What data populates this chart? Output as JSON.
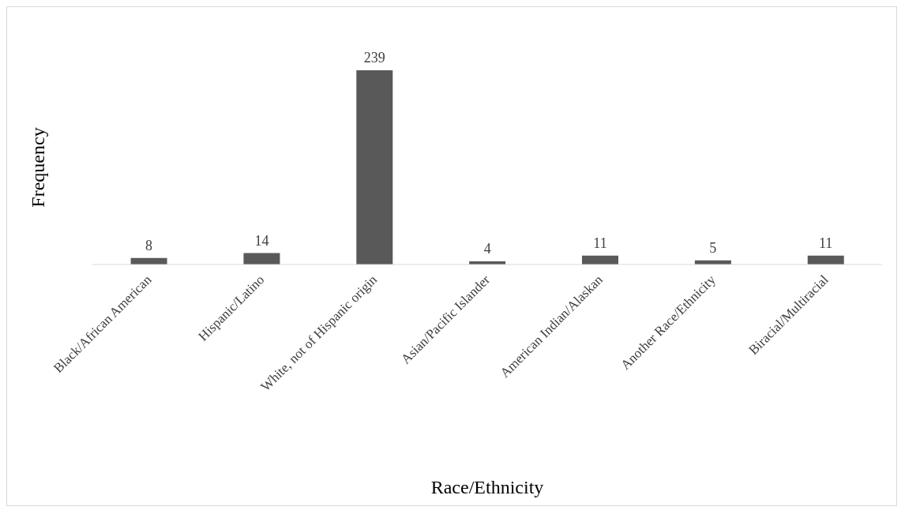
{
  "chart_data": {
    "type": "bar",
    "xlabel": "Race/Ethnicity",
    "ylabel": "Frequency",
    "categories": [
      "Black/African American",
      "Hispanic/Latino",
      "White, not of Hispanic origin",
      "Asian/Pacific Islander",
      "American Indian/Alaskan",
      "Another Race/Ethnicity",
      "Biracial/Multiracial"
    ],
    "values": [
      8,
      14,
      239,
      4,
      11,
      5,
      11
    ],
    "color": "#595959",
    "data_labels": true,
    "grid": false,
    "legend": false
  }
}
